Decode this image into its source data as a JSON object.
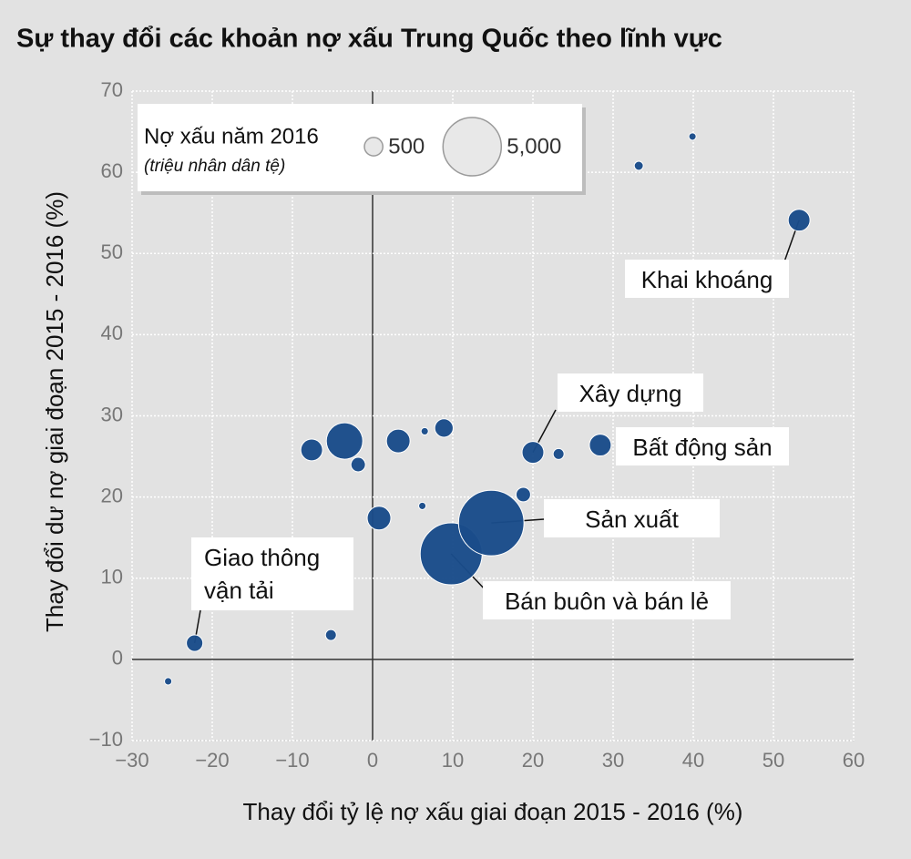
{
  "chart_data": {
    "type": "bubble",
    "title": "Sự thay đổi các khoản nợ xấu Trung Quốc theo lĩnh vực",
    "x_label": "Thay đổi tỷ lệ nợ xấu giai đoạn 2015 - 2016 (%)",
    "y_label": "Thay đổi dư nợ giai đoạn 2015 - 2016 (%)",
    "legend": {
      "title": "Nợ xấu năm 2016",
      "subtitle": "(triệu nhân dân tệ)",
      "sizes": [
        500,
        {
          "value": 5000,
          "label": "5,000"
        }
      ]
    },
    "color": "#1a4c8a",
    "x": [
      -25.5,
      -22.2,
      -5.2,
      -7.6,
      -3.5,
      -1.8,
      0.8,
      3.2,
      6.2,
      6.5,
      8.9,
      9.8,
      14.8,
      18.8,
      20,
      23.2,
      28.4,
      33.2,
      39.9,
      53.2
    ],
    "y": [
      -2.7,
      2,
      3,
      25.8,
      26.9,
      24,
      17.4,
      26.9,
      18.9,
      28.1,
      28.5,
      13,
      16.8,
      20.3,
      25.5,
      25.3,
      26.4,
      60.8,
      64.4,
      54.1
    ],
    "sizes": [
      80,
      400,
      175,
      700,
      1950,
      310,
      825,
      825,
      80,
      80,
      500,
      5650,
      6300,
      310,
      700,
      175,
      700,
      120,
      80,
      700
    ],
    "annotations": [
      "Khai khoáng",
      "Xây dựng",
      "Bất động sản",
      "Sản xuất",
      "Bán buôn và bán lẻ",
      "Giao thông vận tải"
    ],
    "xlim": [
      -30,
      60
    ],
    "xticks": [
      {
        "value": -30,
        "label": "−30"
      },
      {
        "value": -20,
        "label": "−20"
      },
      {
        "value": -10,
        "label": "−10"
      },
      0,
      10,
      20,
      30,
      40,
      50,
      60
    ],
    "ylim": [
      -10,
      70
    ],
    "yticks": [
      {
        "value": -10,
        "label": "−10"
      },
      0,
      10,
      20,
      30,
      40,
      50,
      60,
      70
    ],
    "grid": true
  }
}
